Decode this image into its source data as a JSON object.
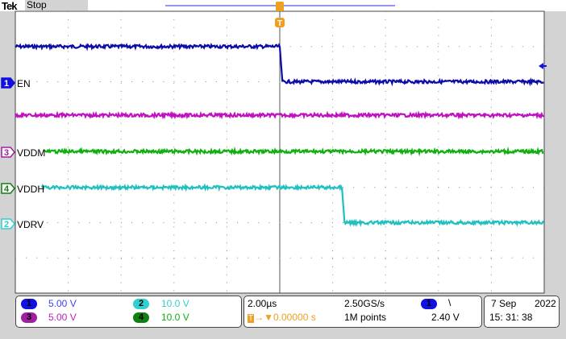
{
  "header": {
    "brand": "Tek",
    "status": "Stop"
  },
  "channels": [
    {
      "id": "1",
      "label": "EN",
      "scale": "5.00 V",
      "color": "#1010e0",
      "marker_color": "#1010e0"
    },
    {
      "id": "2",
      "label": "VDRV",
      "scale": "10.0 V",
      "color": "#20c8c8",
      "marker_color": "#30d0d0"
    },
    {
      "id": "3",
      "label": "VDDM",
      "scale": "5.00 V",
      "color": "#c020c0",
      "marker_color": "#a020a0"
    },
    {
      "id": "4",
      "label": "VDDH",
      "scale": "10.0 V",
      "color": "#10b010",
      "marker_color": "#108010"
    }
  ],
  "timebase": {
    "scale": "2.00µs",
    "trigger_pos": "0.00000 s",
    "sample_rate": "2.50GS/s",
    "record": "1M points",
    "trigger_source": "1",
    "trigger_slope": "\\",
    "trigger_level": "2.40 V",
    "trigger_color": "#f0a020"
  },
  "datetime": {
    "date": "7 Sep",
    "year": "2022",
    "time": "15: 31: 38"
  },
  "chart_data": {
    "type": "line",
    "grid": true,
    "x_divisions": 10,
    "y_divisions": 8,
    "x_unit": "µs",
    "xlim": [
      -10,
      10
    ],
    "traces": [
      {
        "name": "EN",
        "color": "#0c0ca8",
        "points": [
          [
            -10,
            3.0
          ],
          [
            0,
            3.0
          ],
          [
            0.1,
            2.0
          ],
          [
            10,
            2.0
          ]
        ]
      },
      {
        "name": "",
        "color": "#c010c0",
        "points": [
          [
            -10,
            1.05
          ],
          [
            10,
            1.05
          ]
        ]
      },
      {
        "name": "VDDM",
        "color": "#10b010",
        "points": [
          [
            -8.9,
            0.02
          ],
          [
            10,
            0.02
          ]
        ]
      },
      {
        "name": "VDDH",
        "color": "#20c0c0",
        "points": [
          [
            -9,
            -1.0
          ],
          [
            2.35,
            -1.0
          ],
          [
            2.45,
            -2.0
          ],
          [
            10,
            -2.0
          ]
        ]
      }
    ]
  }
}
